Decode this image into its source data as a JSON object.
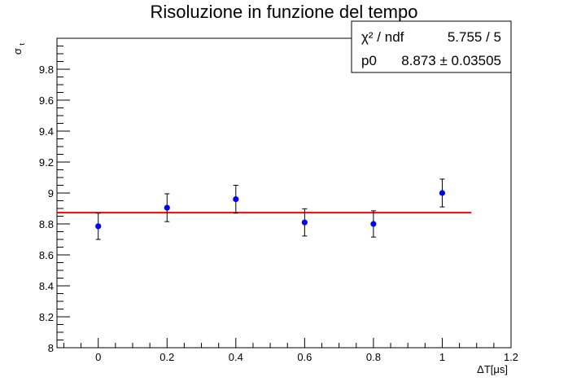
{
  "chart_data": {
    "type": "scatter",
    "title": "Risoluzione in funzione del tempo",
    "xlabel": "ΔT[μs]",
    "ylabel_main": "σ",
    "ylabel_sub": "t",
    "xlim": [
      -0.12,
      1.2
    ],
    "ylim": [
      8.0,
      10.0
    ],
    "x_ticks": [
      0,
      0.2,
      0.4,
      0.6,
      0.8,
      1,
      1.2
    ],
    "x_tick_labels": [
      "0",
      "0.2",
      "0.4",
      "0.6",
      "0.8",
      "1",
      "1.2"
    ],
    "y_ticks": [
      8,
      8.2,
      8.4,
      8.6,
      8.8,
      9,
      9.2,
      9.4,
      9.6,
      9.8
    ],
    "y_tick_labels": [
      "8",
      "8.2",
      "8.4",
      "8.6",
      "8.8",
      "9",
      "9.2",
      "9.4",
      "9.6",
      "9.8"
    ],
    "grid": false,
    "series": [
      {
        "x": [
          0,
          0.2,
          0.4,
          0.6,
          0.8,
          1.0
        ],
        "y": [
          8.785,
          8.905,
          8.96,
          8.81,
          8.8,
          9.0
        ],
        "yerr": [
          0.085,
          0.09,
          0.09,
          0.088,
          0.085,
          0.09
        ],
        "color": "#0000ff"
      }
    ],
    "fit": {
      "type": "constant",
      "value": 8.873,
      "x_range": [
        -0.12,
        1.085
      ],
      "color": "#ff0000"
    },
    "stats_box": {
      "position": "top-right",
      "rows": [
        {
          "label": "χ² / ndf",
          "value": "5.755 / 5"
        },
        {
          "label": "p0",
          "value": "8.873 ± 0.03505"
        }
      ]
    }
  }
}
